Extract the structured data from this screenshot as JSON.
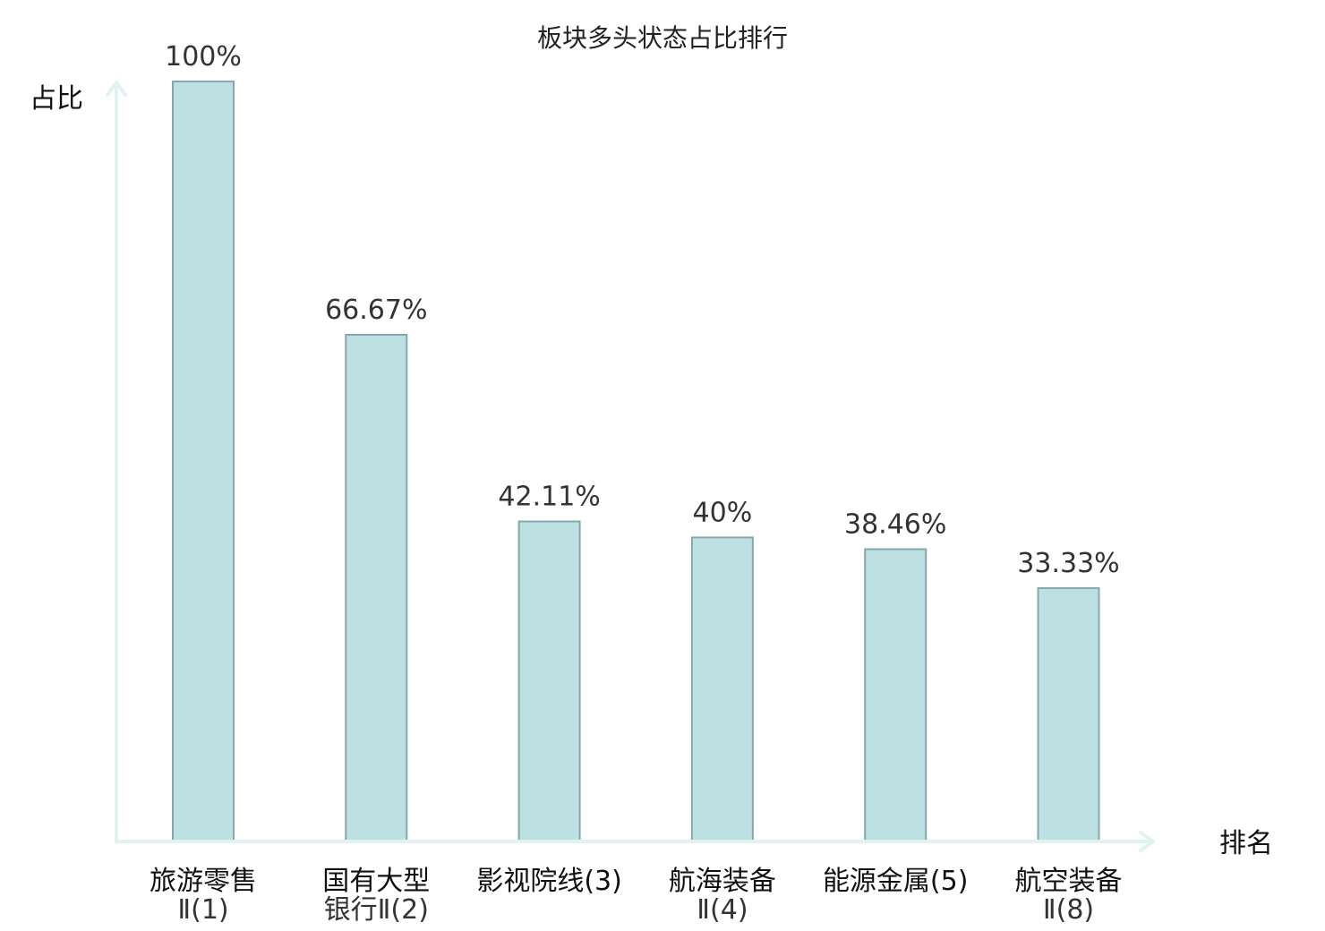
{
  "chart_data": {
    "type": "bar",
    "title": "板块多头状态占比排行",
    "ylabel": "占比",
    "xlabel": "排名",
    "ylim": [
      0,
      100
    ],
    "grid": false,
    "categories": [
      {
        "lines": [
          "旅游零售",
          "Ⅱ(1)"
        ],
        "highlight": false
      },
      {
        "lines": [
          "国有大型",
          "银行Ⅱ(2)"
        ],
        "highlight": false
      },
      {
        "lines": [
          "影视院线(3)"
        ],
        "highlight": false
      },
      {
        "lines": [
          "航海装备",
          "Ⅱ(4)"
        ],
        "highlight": false
      },
      {
        "lines": [
          "能源金属(5)"
        ],
        "highlight": false
      },
      {
        "lines": [
          "航空装备",
          "Ⅱ(8)"
        ],
        "highlight": true
      }
    ],
    "values": [
      100,
      66.67,
      42.11,
      40,
      38.46,
      33.33
    ],
    "value_labels": [
      "100%",
      "66.67%",
      "42.11%",
      "40%",
      "38.46%",
      "33.33%"
    ],
    "colors": {
      "bar_fill": "#bde0e3",
      "bar_stroke": "#86a7ab",
      "axis": "#e0f3f0",
      "highlight": "#e8201e",
      "text": "#222222"
    }
  }
}
